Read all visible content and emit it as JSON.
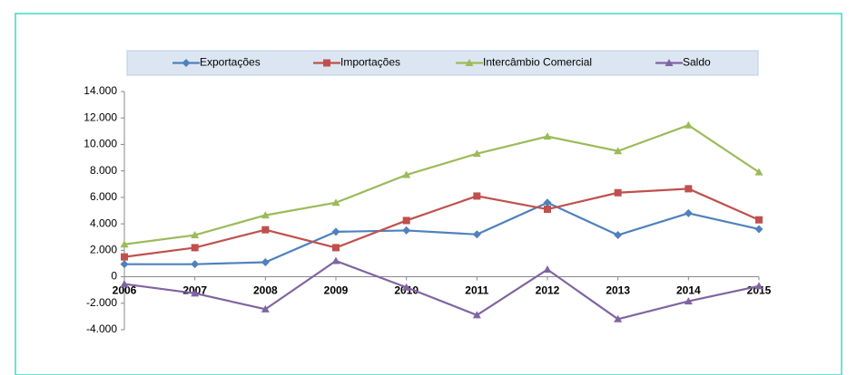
{
  "chart_data": {
    "type": "line",
    "categories": [
      "2006",
      "2007",
      "2008",
      "2009",
      "2010",
      "2011",
      "2012",
      "2013",
      "2014",
      "2015"
    ],
    "series": [
      {
        "name": "Exportações",
        "color": "#4f81bd",
        "marker": "diamond",
        "values": [
          950,
          950,
          1100,
          3400,
          3500,
          3200,
          5600,
          3150,
          4800,
          3600
        ]
      },
      {
        "name": "Importações",
        "color": "#c0504d",
        "marker": "square",
        "values": [
          1500,
          2200,
          3550,
          2200,
          4250,
          6100,
          5100,
          6350,
          6650,
          4300
        ]
      },
      {
        "name": "Intercâmbio Comercial",
        "color": "#9bbb59",
        "marker": "triangle",
        "values": [
          2450,
          3150,
          4650,
          5600,
          7700,
          9300,
          10600,
          9500,
          11450,
          7900
        ]
      },
      {
        "name": "Saldo",
        "color": "#8064a2",
        "marker": "triangle",
        "values": [
          -550,
          -1250,
          -2450,
          1200,
          -800,
          -2900,
          550,
          -3200,
          -1850,
          -700
        ]
      }
    ],
    "ylim": [
      -4000,
      14000
    ],
    "yticks": [
      {
        "value": -4000,
        "label": "-4.000"
      },
      {
        "value": -2000,
        "label": "-2.000"
      },
      0,
      {
        "value": 2000,
        "label": "2.000"
      },
      {
        "value": 4000,
        "label": "4.000"
      },
      {
        "value": 6000,
        "label": "6.000"
      },
      {
        "value": 8000,
        "label": "8.000"
      },
      {
        "value": 10000,
        "label": "10.000"
      },
      {
        "value": 12000,
        "label": "12.000"
      },
      {
        "value": 14000,
        "label": "14.000"
      }
    ],
    "grid": false,
    "legend": "top"
  }
}
